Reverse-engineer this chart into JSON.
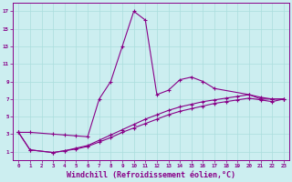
{
  "background_color": "#cceef0",
  "grid_color": "#aadddd",
  "line_color": "#880088",
  "xlabel": "Windchill (Refroidissement éolien,°C)",
  "xlim": [
    -0.5,
    23.5
  ],
  "ylim": [
    0.0,
    18.0
  ],
  "xticks": [
    0,
    1,
    2,
    3,
    4,
    5,
    6,
    7,
    8,
    9,
    10,
    11,
    12,
    13,
    14,
    15,
    16,
    17,
    18,
    19,
    20,
    21,
    22,
    23
  ],
  "yticks": [
    1,
    3,
    5,
    7,
    9,
    11,
    13,
    15,
    17
  ],
  "s1_x": [
    0,
    1,
    3,
    4,
    5,
    6,
    7,
    8,
    9,
    10,
    11,
    12,
    13,
    14,
    15,
    16,
    17,
    20,
    21,
    22,
    23
  ],
  "s1_y": [
    3.2,
    3.2,
    3.0,
    2.9,
    2.8,
    2.7,
    7.0,
    9.0,
    13.0,
    17.0,
    16.0,
    7.5,
    8.0,
    9.2,
    9.5,
    9.0,
    8.2,
    7.5,
    7.0,
    7.0,
    7.0
  ],
  "s2_x": [
    0,
    1,
    3,
    4,
    5,
    6,
    7,
    8,
    9,
    10,
    11,
    12,
    13,
    14,
    15,
    16,
    17,
    18,
    19,
    20,
    21,
    22,
    23
  ],
  "s2_y": [
    3.2,
    1.2,
    0.9,
    1.1,
    1.4,
    1.7,
    2.3,
    2.9,
    3.5,
    4.1,
    4.7,
    5.2,
    5.7,
    6.1,
    6.4,
    6.7,
    6.9,
    7.1,
    7.3,
    7.5,
    7.2,
    7.0,
    7.0
  ],
  "s3_x": [
    0,
    1,
    3,
    4,
    5,
    6,
    7,
    8,
    9,
    10,
    11,
    12,
    13,
    14,
    15,
    16,
    17,
    18,
    19,
    20,
    21,
    22,
    23
  ],
  "s3_y": [
    3.2,
    1.2,
    0.9,
    1.1,
    1.3,
    1.6,
    2.1,
    2.6,
    3.2,
    3.7,
    4.2,
    4.7,
    5.2,
    5.6,
    5.9,
    6.2,
    6.5,
    6.7,
    6.9,
    7.1,
    6.9,
    6.7,
    7.0
  ]
}
